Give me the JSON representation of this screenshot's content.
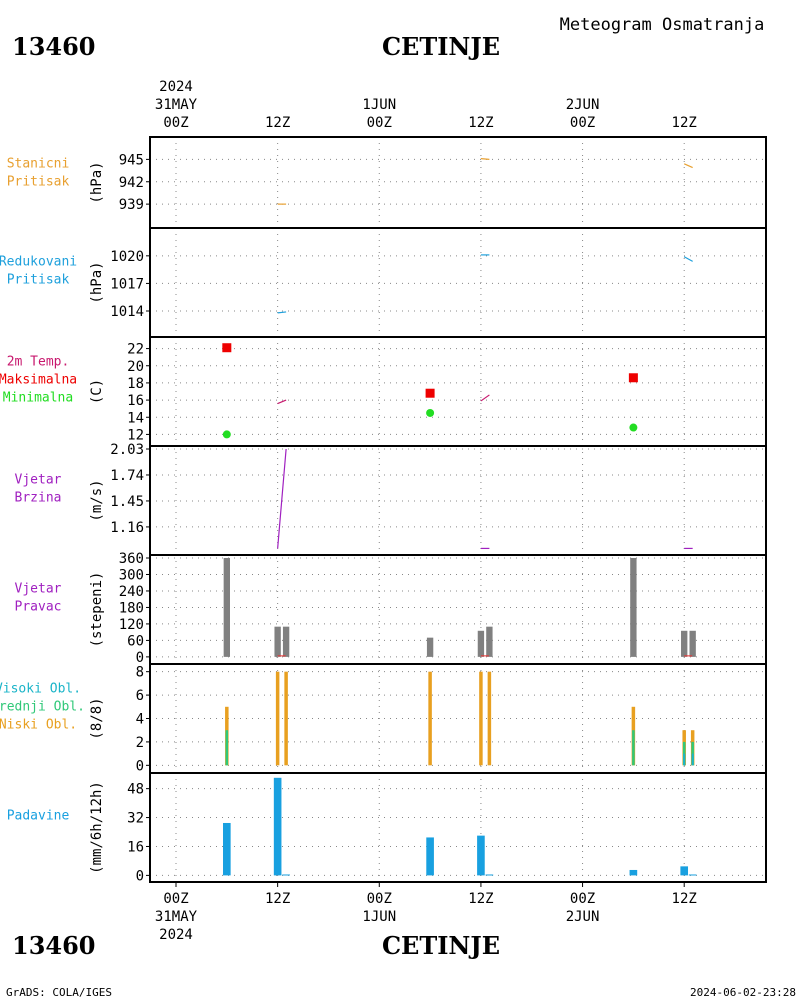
{
  "header": {
    "station_id": "13460",
    "station_name": "CETINJE",
    "chart_title": "Meteogram Osmatranja"
  },
  "footer": {
    "left": "GrADS: COLA/IGES",
    "right": "2024-06-02-23:28"
  },
  "colors": {
    "stanicni": "#e8a030",
    "redukovani": "#1ea0dc",
    "temp": "#c8186e",
    "max": "#ee0000",
    "min": "#22dd22",
    "wind": "#a020c0",
    "bar_gray": "#808080",
    "visoki": "#1ab4c8",
    "srednji": "#30c878",
    "niski": "#e8a020",
    "padavine": "#18a0e0"
  },
  "time_axis": {
    "start_hour": 0,
    "end_hour": 68,
    "top_year": "2024",
    "bottom_year": "2024",
    "ticks": [
      {
        "hour": 0,
        "time": "00Z",
        "date": "31MAY"
      },
      {
        "hour": 12,
        "time": "12Z",
        "date": ""
      },
      {
        "hour": 24,
        "time": "00Z",
        "date": "1JUN"
      },
      {
        "hour": 36,
        "time": "12Z",
        "date": ""
      },
      {
        "hour": 48,
        "time": "00Z",
        "date": "2JUN"
      },
      {
        "hour": 60,
        "time": "12Z",
        "date": ""
      }
    ]
  },
  "chart_data": [
    {
      "type": "line",
      "id": "stanicni",
      "labels": [
        "Stanicni",
        "Pritisak"
      ],
      "ylabel": "(hPa)",
      "ylim": [
        936.2,
        947.6
      ],
      "yticks": [
        939,
        942,
        945
      ],
      "series": [
        {
          "color_key": "stanicni",
          "points": [
            [
              12,
              939.0
            ],
            [
              13,
              939.0
            ]
          ]
        },
        {
          "color_key": "stanicni",
          "points": [
            [
              36,
              945.1
            ],
            [
              37,
              945.0
            ]
          ]
        },
        {
          "color_key": "stanicni",
          "points": [
            [
              60,
              944.4
            ],
            [
              61,
              943.9
            ]
          ]
        }
      ]
    },
    {
      "type": "line",
      "id": "redukovani",
      "labels": [
        "Redukovani",
        "Pritisak"
      ],
      "ylabel": "(hPa)",
      "ylim": [
        1011.5,
        1022.7
      ],
      "yticks": [
        1014,
        1017,
        1020
      ],
      "series": [
        {
          "color_key": "redukovani",
          "points": [
            [
              12,
              1013.8
            ],
            [
              13,
              1013.9
            ]
          ]
        },
        {
          "color_key": "redukovani",
          "points": [
            [
              36,
              1020.1
            ],
            [
              37,
              1020.1
            ]
          ]
        },
        {
          "color_key": "redukovani",
          "points": [
            [
              60,
              1019.9
            ],
            [
              61,
              1019.4
            ]
          ]
        }
      ]
    },
    {
      "type": "scatter",
      "id": "temperatura",
      "labels": [
        "2m Temp.",
        "Maksimalna",
        "Minimalna"
      ],
      "ylabel": "(C)",
      "ylim": [
        11,
        23
      ],
      "yticks": [
        12,
        14,
        16,
        18,
        20,
        22
      ],
      "series": [
        {
          "name": "2m Temp.",
          "color_key": "temp",
          "kind": "line",
          "points": [
            [
              12,
              15.6
            ],
            [
              13,
              16.0
            ]
          ]
        },
        {
          "name": "2m Temp.",
          "color_key": "temp",
          "kind": "line",
          "points": [
            [
              36,
              15.9
            ],
            [
              37,
              16.6
            ]
          ]
        },
        {
          "name": "Maksimalna",
          "color_key": "max",
          "kind": "square",
          "points": [
            [
              6,
              22.1
            ],
            [
              30,
              16.8
            ],
            [
              54,
              18.6
            ]
          ]
        },
        {
          "name": "Minimalna",
          "color_key": "min",
          "kind": "dot",
          "points": [
            [
              6,
              12.0
            ],
            [
              30,
              14.5
            ],
            [
              54,
              12.8
            ]
          ]
        }
      ]
    },
    {
      "type": "line",
      "id": "vjetar_brzina",
      "labels": [
        "Vjetar",
        "Brzina"
      ],
      "ylabel": "(m/s)",
      "ylim": [
        0.88,
        2.03
      ],
      "yticks": [
        1.16,
        1.45,
        1.74,
        2.03
      ],
      "series": [
        {
          "color_key": "wind",
          "points": [
            [
              12,
              0.92
            ],
            [
              13,
              2.03
            ]
          ]
        },
        {
          "color_key": "wind",
          "points": [
            [
              36,
              0.92
            ],
            [
              37,
              0.92
            ]
          ]
        },
        {
          "color_key": "wind",
          "points": [
            [
              60,
              0.92
            ],
            [
              61,
              0.92
            ]
          ]
        }
      ]
    },
    {
      "type": "bar",
      "id": "vjetar_pravac",
      "labels": [
        "Vjetar",
        "Pravac"
      ],
      "ylabel": "(stepeni)",
      "ylim": [
        -15,
        360
      ],
      "yticks": [
        0,
        60,
        120,
        180,
        240,
        300,
        360
      ],
      "bar_width_hours": 0.75,
      "series": [
        {
          "color_key": "bar_gray",
          "bars": [
            [
              6,
              360
            ],
            [
              12,
              110
            ],
            [
              13,
              110
            ],
            [
              30,
              70
            ],
            [
              36,
              95
            ],
            [
              37,
              110
            ],
            [
              54,
              360
            ],
            [
              60,
              95
            ],
            [
              61,
              95
            ]
          ]
        }
      ],
      "red_ticks": [
        12,
        36,
        60
      ]
    },
    {
      "type": "bar",
      "id": "oblaci",
      "labels": [
        "Visoki Obl.",
        "Srednji Obl.",
        "Niski Obl."
      ],
      "ylabel": "(8/8)",
      "ylim": [
        -0.4,
        8.4
      ],
      "yticks": [
        0,
        2,
        4,
        6,
        8
      ],
      "bar_width_hours": 0.45,
      "series": [
        {
          "name": "Niski Obl.",
          "color_key": "niski",
          "bars": [
            [
              6,
              5
            ],
            [
              12,
              8
            ],
            [
              13,
              8
            ],
            [
              30,
              8
            ],
            [
              36,
              8
            ],
            [
              37,
              8
            ],
            [
              54,
              5
            ],
            [
              60,
              3
            ],
            [
              61,
              3
            ]
          ]
        },
        {
          "name": "Srednji Obl.",
          "color_key": "srednji",
          "bars": [
            [
              6,
              3
            ],
            [
              54,
              3
            ],
            [
              60,
              2
            ],
            [
              61,
              2
            ]
          ]
        },
        {
          "name": "Visoki Obl.",
          "color_key": "visoki",
          "bars": [
            [
              60,
              1
            ],
            [
              61,
              1
            ]
          ]
        }
      ]
    },
    {
      "type": "bar",
      "id": "padavine",
      "labels": [
        "Padavine"
      ],
      "ylabel": "(mm/6h/12h)",
      "ylim": [
        -2,
        55
      ],
      "yticks": [
        0,
        16,
        32,
        48
      ],
      "bar_width_hours": 0.9,
      "series": [
        {
          "color_key": "padavine",
          "bars": [
            [
              6,
              29
            ],
            [
              12,
              54
            ],
            [
              13,
              0.5
            ],
            [
              30,
              21
            ],
            [
              36,
              22
            ],
            [
              37,
              0.5
            ],
            [
              54,
              3
            ],
            [
              60,
              5
            ],
            [
              61,
              0.5
            ]
          ]
        }
      ]
    }
  ]
}
